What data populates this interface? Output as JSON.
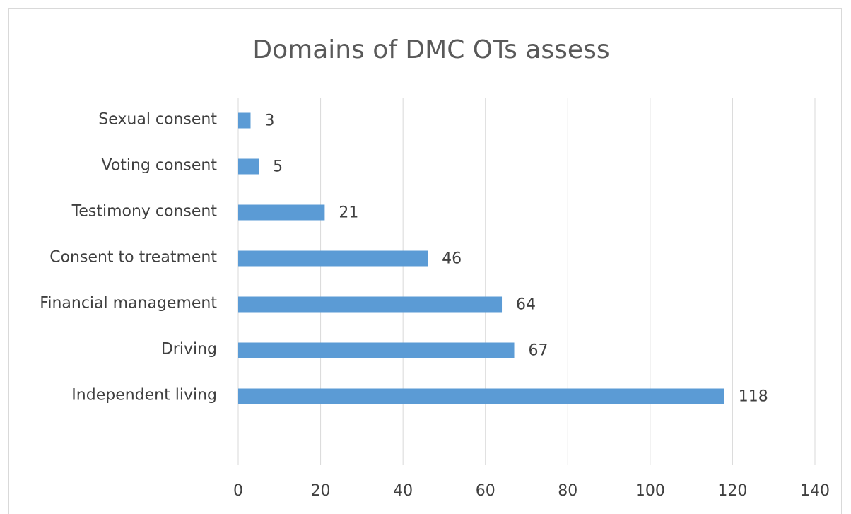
{
  "chart_data": {
    "type": "bar",
    "orientation": "horizontal",
    "title": "Domains of DMC OTs assess",
    "categories": [
      "Sexual consent",
      "Voting consent",
      "Testimony consent",
      "Consent to treatment",
      "Financial management",
      "Driving",
      "Independent living",
      null
    ],
    "values": [
      3,
      5,
      21,
      46,
      64,
      67,
      118,
      null
    ],
    "color": "#5b9bd5",
    "xlim": [
      0,
      140
    ],
    "xticks": [
      0,
      20,
      40,
      60,
      80,
      100,
      120,
      140
    ],
    "grid": true
  }
}
